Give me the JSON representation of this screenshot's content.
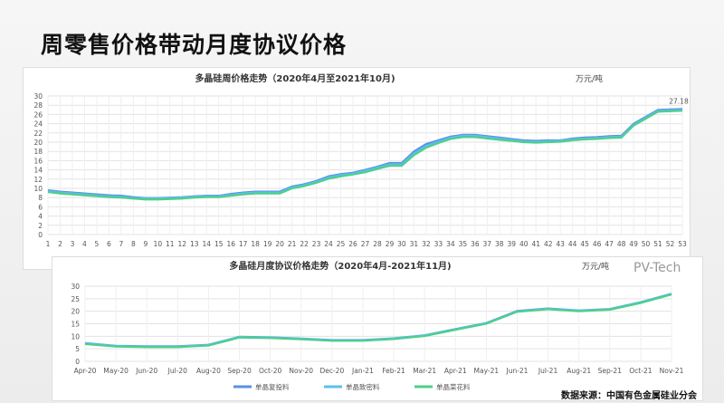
{
  "page_title": "周零售价格带动月度协议价格",
  "source": "数据来源：中国有色金属硅业分会",
  "watermark": "PV-Tech",
  "chart_data": [
    {
      "type": "line",
      "title": "多晶硅周价格走势（2020年4月至2021年10月)",
      "unit": "万元/吨",
      "ylim": [
        0,
        30
      ],
      "yticks": [
        0,
        2,
        4,
        6,
        8,
        10,
        12,
        14,
        16,
        18,
        20,
        22,
        24,
        26,
        28,
        30
      ],
      "grid": true,
      "x": [
        1,
        2,
        3,
        4,
        5,
        6,
        7,
        8,
        9,
        10,
        11,
        12,
        13,
        14,
        15,
        16,
        17,
        18,
        19,
        20,
        21,
        22,
        23,
        24,
        25,
        26,
        27,
        28,
        29,
        30,
        31,
        32,
        33,
        34,
        35,
        36,
        37,
        38,
        39,
        40,
        41,
        42,
        43,
        44,
        45,
        46,
        47,
        48,
        49,
        50,
        51,
        52,
        53
      ],
      "annotation": "27.18",
      "colors": [
        "#5b8ee6",
        "#5bc0eb",
        "#4cd08a"
      ],
      "series": [
        {
          "values": [
            9.6,
            9.3,
            9.1,
            8.9,
            8.7,
            8.5,
            8.4,
            8.1,
            7.9,
            7.9,
            8.0,
            8.1,
            8.3,
            8.4,
            8.4,
            8.8,
            9.1,
            9.3,
            9.3,
            9.3,
            10.4,
            10.9,
            11.6,
            12.6,
            13.1,
            13.4,
            14.0,
            14.7,
            15.5,
            15.5,
            18.0,
            19.6,
            20.4,
            21.2,
            21.6,
            21.6,
            21.3,
            21.0,
            20.7,
            20.4,
            20.3,
            20.4,
            20.4,
            20.8,
            21.0,
            21.1,
            21.3,
            21.4,
            24.0,
            25.5,
            27.0,
            27.1,
            27.18
          ]
        },
        {
          "values": [
            9.4,
            9.1,
            8.9,
            8.7,
            8.5,
            8.3,
            8.2,
            7.9,
            7.8,
            7.8,
            7.9,
            8.0,
            8.2,
            8.3,
            8.3,
            8.6,
            8.9,
            9.1,
            9.1,
            9.1,
            10.2,
            10.7,
            11.4,
            12.4,
            12.9,
            13.2,
            13.8,
            14.5,
            15.2,
            15.2,
            17.6,
            19.2,
            20.1,
            21.0,
            21.4,
            21.4,
            21.1,
            20.8,
            20.5,
            20.2,
            20.1,
            20.2,
            20.3,
            20.6,
            20.8,
            20.9,
            21.1,
            21.2,
            23.8,
            25.3,
            26.8,
            26.9,
            27.0
          ]
        },
        {
          "values": [
            9.2,
            8.9,
            8.7,
            8.5,
            8.3,
            8.1,
            8.0,
            7.8,
            7.6,
            7.6,
            7.7,
            7.8,
            8.0,
            8.1,
            8.1,
            8.4,
            8.7,
            8.9,
            8.9,
            8.9,
            10.0,
            10.5,
            11.2,
            12.1,
            12.6,
            13.0,
            13.5,
            14.2,
            14.9,
            14.9,
            17.2,
            18.8,
            19.8,
            20.7,
            21.1,
            21.1,
            20.8,
            20.5,
            20.3,
            20.0,
            19.9,
            20.0,
            20.1,
            20.4,
            20.6,
            20.7,
            20.9,
            21.0,
            23.6,
            25.1,
            26.6,
            26.7,
            26.8
          ]
        }
      ]
    },
    {
      "type": "line",
      "title": "多晶硅月度协议价格走势（2020年4月-2021年11月)",
      "unit": "万元/吨",
      "ylim": [
        0,
        30
      ],
      "yticks": [
        0,
        5,
        10,
        15,
        20,
        25,
        30
      ],
      "grid": true,
      "categories": [
        "Apr-20",
        "May-20",
        "Jun-20",
        "Jul-20",
        "Aug-20",
        "Sep-20",
        "Oct-20",
        "Nov-20",
        "Dec-20",
        "Jan-21",
        "Feb-21",
        "Mar-21",
        "Apr-21",
        "May-21",
        "Jun-21",
        "Jul-21",
        "Aug-21",
        "Sep-21",
        "Oct-21",
        "Nov-21"
      ],
      "legend_position": "bottom",
      "series": [
        {
          "name": "单晶复投料",
          "color": "#5b8ee6",
          "values": [
            7.3,
            6.2,
            6.0,
            6.0,
            6.6,
            9.8,
            9.6,
            9.1,
            8.5,
            8.5,
            9.2,
            10.4,
            12.9,
            15.3,
            20.1,
            21.1,
            20.3,
            20.9,
            23.6,
            27.0
          ]
        },
        {
          "name": "单晶致密料",
          "color": "#5bc0eb",
          "values": [
            7.1,
            6.1,
            5.9,
            5.9,
            6.5,
            9.7,
            9.5,
            9.0,
            8.4,
            8.4,
            9.1,
            10.3,
            12.8,
            15.2,
            20.0,
            21.0,
            20.2,
            20.8,
            23.5,
            26.9
          ]
        },
        {
          "name": "单晶菜花料",
          "color": "#4cd08a",
          "values": [
            6.9,
            5.9,
            5.7,
            5.7,
            6.3,
            9.5,
            9.3,
            8.8,
            8.2,
            8.2,
            8.9,
            10.1,
            12.6,
            15.0,
            19.8,
            20.8,
            20.0,
            20.6,
            23.3,
            26.7
          ]
        }
      ]
    }
  ]
}
